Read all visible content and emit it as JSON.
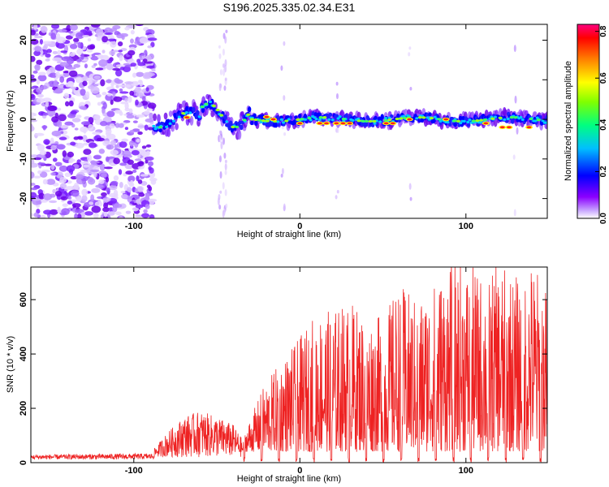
{
  "title": "S196.2025.335.02.34.E31",
  "chart_data": [
    {
      "type": "heatmap",
      "xlabel": "Height of straight line (km)",
      "ylabel": "Frequency (Hz)",
      "xlim": [
        -162,
        149
      ],
      "ylim": [
        -25,
        24
      ],
      "x_ticks": [
        "-100",
        "0",
        "100"
      ],
      "y_ticks": [
        "-20",
        "-10",
        "0",
        "10",
        "20"
      ],
      "colorbar": {
        "label": "Normalized spectral amplitude",
        "range": [
          0.0,
          0.83
        ],
        "ticks": [
          "0.0",
          "0.2",
          "0.4",
          "0.6",
          "0.8"
        ],
        "colors": [
          "#ffffff",
          "#8b00ff",
          "#0000ff",
          "#00bfff",
          "#00ff80",
          "#80ff00",
          "#ffff00",
          "#ff8000",
          "#ff0000",
          "#ff0080"
        ]
      },
      "description_features": {
        "noise_region_x": [
          -162,
          -88
        ],
        "signal_band_x": [
          -88,
          149
        ],
        "signal_center_freq": 0
      }
    },
    {
      "type": "line",
      "xlabel": "Height of straight line (km)",
      "ylabel": "SNR (10 * v/v)",
      "xlim": [
        -162,
        149
      ],
      "ylim": [
        0,
        720
      ],
      "x_ticks": [
        "-100",
        "0",
        "100"
      ],
      "y_ticks": [
        "0",
        "200",
        "400",
        "600"
      ],
      "color": "#ee2222",
      "envelope": [
        {
          "x": -162,
          "y": 25
        },
        {
          "x": -88,
          "y": 30
        },
        {
          "x": -80,
          "y": 90
        },
        {
          "x": -70,
          "y": 150
        },
        {
          "x": -60,
          "y": 170
        },
        {
          "x": -50,
          "y": 150
        },
        {
          "x": -40,
          "y": 120
        },
        {
          "x": -34,
          "y": 60
        },
        {
          "x": -22,
          "y": 240
        },
        {
          "x": -12,
          "y": 330
        },
        {
          "x": 0,
          "y": 420
        },
        {
          "x": 10,
          "y": 520
        },
        {
          "x": 20,
          "y": 520
        },
        {
          "x": 30,
          "y": 560
        },
        {
          "x": 40,
          "y": 500
        },
        {
          "x": 50,
          "y": 500
        },
        {
          "x": 60,
          "y": 620
        },
        {
          "x": 70,
          "y": 560
        },
        {
          "x": 80,
          "y": 620
        },
        {
          "x": 90,
          "y": 690
        },
        {
          "x": 100,
          "y": 700
        },
        {
          "x": 110,
          "y": 650
        },
        {
          "x": 120,
          "y": 690
        },
        {
          "x": 130,
          "y": 650
        },
        {
          "x": 140,
          "y": 710
        },
        {
          "x": 149,
          "y": 600
        }
      ]
    }
  ]
}
